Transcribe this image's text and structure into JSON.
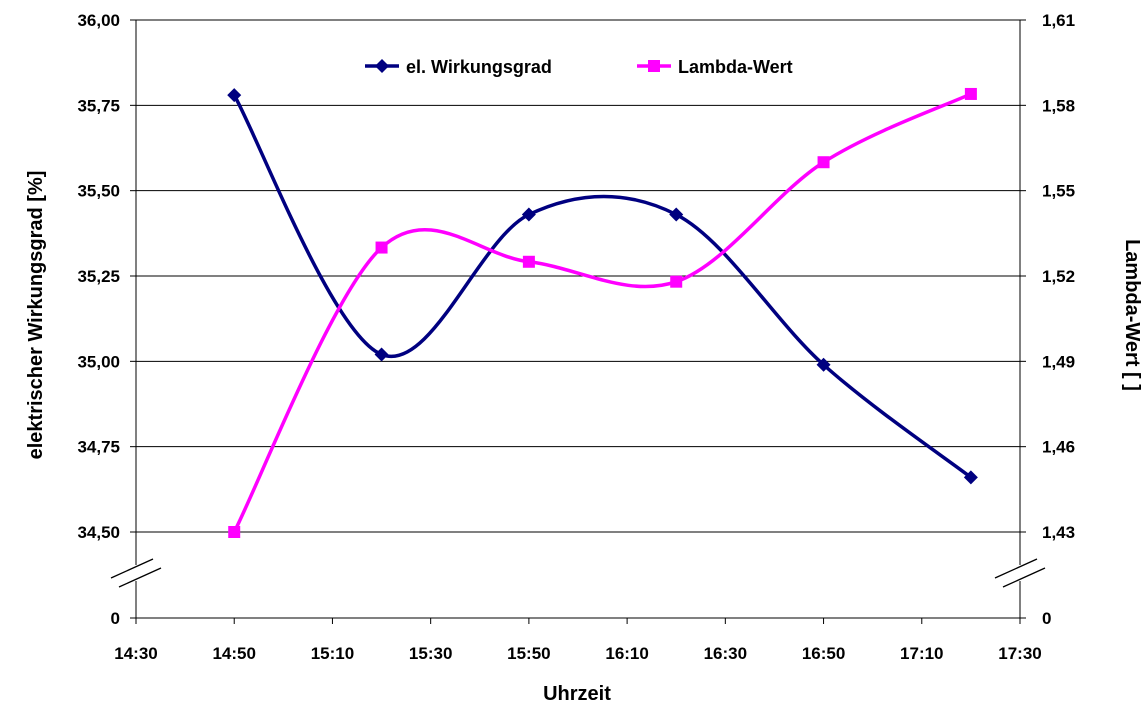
{
  "chart_data": {
    "type": "line",
    "title": "",
    "xlabel": "Uhrzeit",
    "ylabel_left": "elektrischer Wirkungsgrad [%]",
    "ylabel_right": "Lambda-Wert [ ]",
    "x_ticks": [
      "14:30",
      "14:50",
      "15:10",
      "15:30",
      "15:50",
      "16:10",
      "16:30",
      "16:50",
      "17:10",
      "17:30"
    ],
    "xlim": [
      "14:30",
      "17:30"
    ],
    "y_left_ticks": [
      "0",
      "34,50",
      "34,75",
      "35,00",
      "35,25",
      "35,50",
      "35,75",
      "36,00"
    ],
    "y_left_range": [
      34.5,
      36.0
    ],
    "y_right_ticks": [
      "0",
      "1,43",
      "1,46",
      "1,49",
      "1,52",
      "1,55",
      "1,58",
      "1,61"
    ],
    "y_right_range": [
      1.43,
      1.61
    ],
    "axis_break": true,
    "grid": "horizontal",
    "legend_position": "top",
    "smooth": true,
    "series": [
      {
        "name": "el. Wirkungsgrad",
        "axis": "left",
        "color": "#000080",
        "marker": "diamond",
        "points": [
          {
            "x": "14:50",
            "y": 35.78
          },
          {
            "x": "15:20",
            "y": 35.02
          },
          {
            "x": "15:50",
            "y": 35.43
          },
          {
            "x": "16:20",
            "y": 35.43
          },
          {
            "x": "16:50",
            "y": 34.99
          },
          {
            "x": "17:20",
            "y": 34.66
          }
        ]
      },
      {
        "name": "Lambda-Wert",
        "axis": "right",
        "color": "#FF00FF",
        "marker": "square",
        "points": [
          {
            "x": "14:50",
            "y": 1.43
          },
          {
            "x": "15:20",
            "y": 1.53
          },
          {
            "x": "15:50",
            "y": 1.525
          },
          {
            "x": "16:20",
            "y": 1.518
          },
          {
            "x": "16:50",
            "y": 1.56
          },
          {
            "x": "17:20",
            "y": 1.584
          }
        ]
      }
    ]
  }
}
